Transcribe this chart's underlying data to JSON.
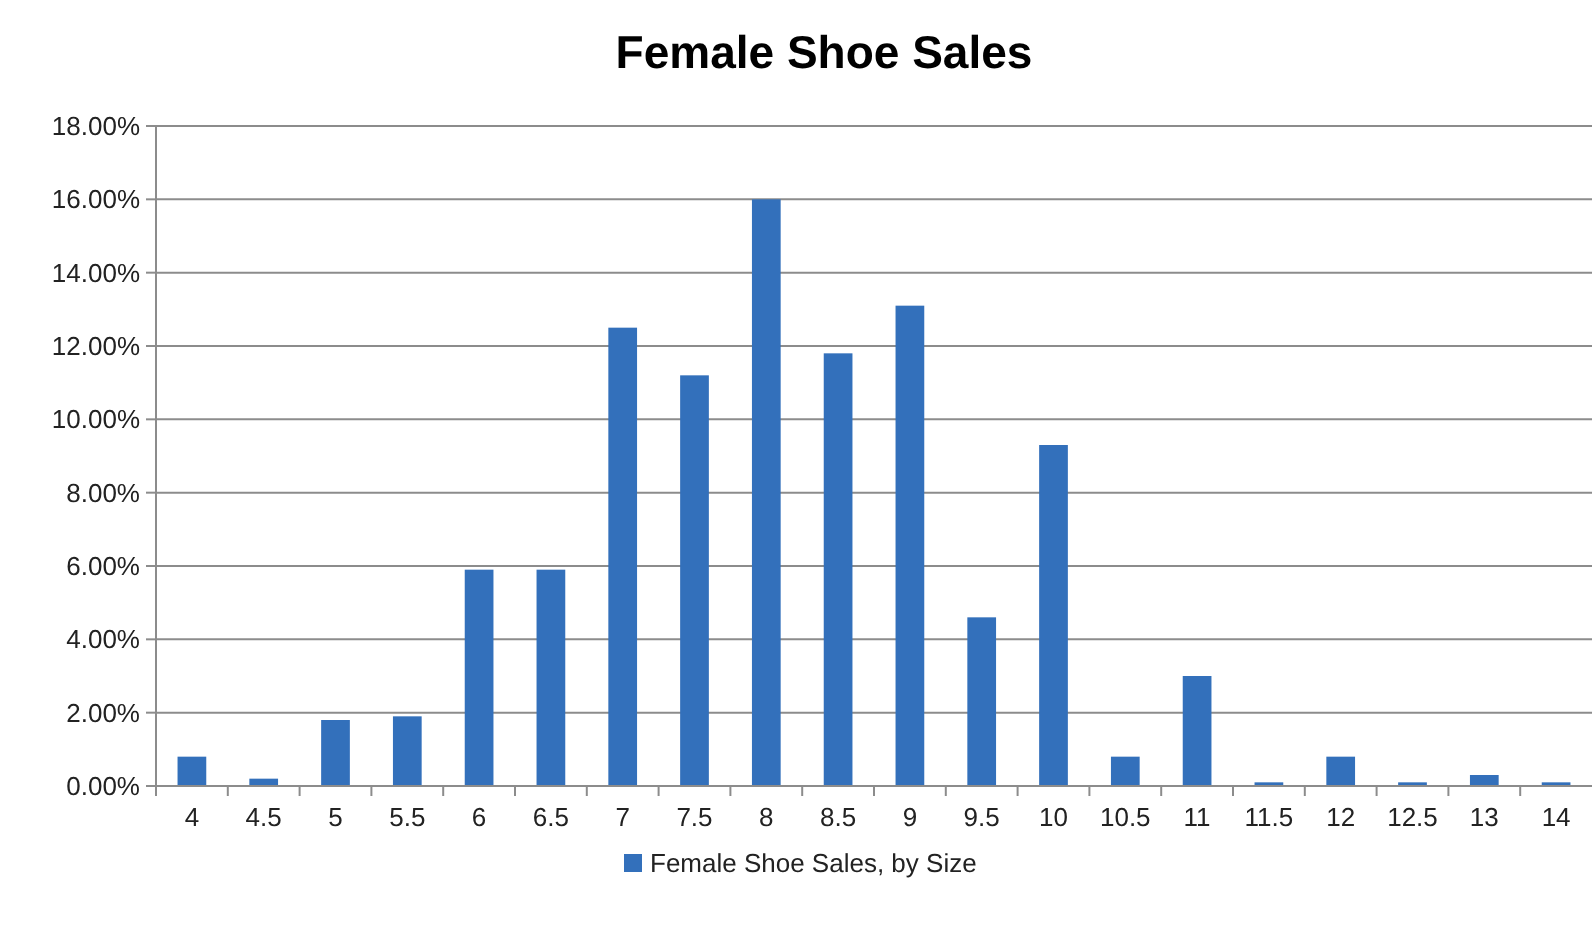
{
  "chart_data": {
    "type": "bar",
    "title": "Female Shoe Sales",
    "categories": [
      "4",
      "4.5",
      "5",
      "5.5",
      "6",
      "6.5",
      "7",
      "7.5",
      "8",
      "8.5",
      "9",
      "9.5",
      "10",
      "10.5",
      "11",
      "11.5",
      "12",
      "12.5",
      "13",
      "14"
    ],
    "series": [
      {
        "name": "Female Shoe Sales, by Size",
        "color": "#3370bb",
        "values": [
          0.8,
          0.2,
          1.8,
          1.9,
          5.9,
          5.9,
          12.5,
          11.2,
          16.0,
          11.8,
          13.1,
          4.6,
          9.3,
          0.8,
          3.0,
          0.1,
          0.8,
          0.1,
          0.3,
          0.1
        ]
      }
    ],
    "ylim": [
      0,
      18
    ],
    "yticks": [
      {
        "value": 0,
        "label": "0.00%"
      },
      {
        "value": 2,
        "label": "2.00%"
      },
      {
        "value": 4,
        "label": "4.00%"
      },
      {
        "value": 6,
        "label": "6.00%"
      },
      {
        "value": 8,
        "label": "8.00%"
      },
      {
        "value": 10,
        "label": "10.00%"
      },
      {
        "value": 12,
        "label": "12.00%"
      },
      {
        "value": 14,
        "label": "14.00%"
      },
      {
        "value": 16,
        "label": "16.00%"
      },
      {
        "value": 18,
        "label": "18.00%"
      }
    ],
    "grid": "y",
    "legend": "bottom"
  }
}
